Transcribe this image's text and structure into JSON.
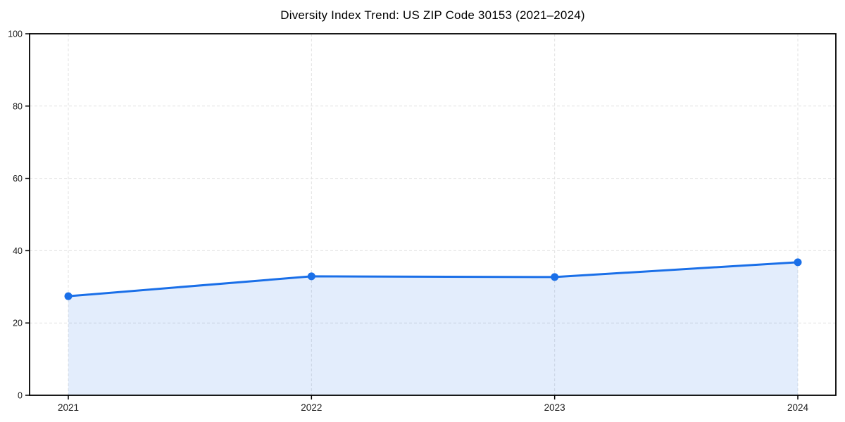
{
  "page": {
    "background": "#ffffff"
  },
  "chart_data": {
    "type": "area",
    "title": "Diversity Index Trend: US ZIP Code 30153 (2021–2024)",
    "x": [
      "2021",
      "2022",
      "2023",
      "2024"
    ],
    "series": [
      {
        "name": "Diversity Index",
        "values": [
          27.4,
          32.9,
          32.7,
          36.8
        ]
      }
    ],
    "xlabel": "",
    "ylabel": "",
    "ylim": [
      0,
      100
    ],
    "yticks": [
      0,
      20,
      40,
      60,
      80,
      100
    ],
    "grid": true,
    "grid_style": "dashed",
    "legend": "none",
    "marker": "circle",
    "colors": {
      "line": "#1a6fe8",
      "marker": "#1a6fe8",
      "fill": "#1a6fe8",
      "fill_opacity": 0.12,
      "grid": "#e2e2e2",
      "axis": "#000000",
      "tick_label": "#1a1a1a",
      "title": "#000000"
    }
  }
}
